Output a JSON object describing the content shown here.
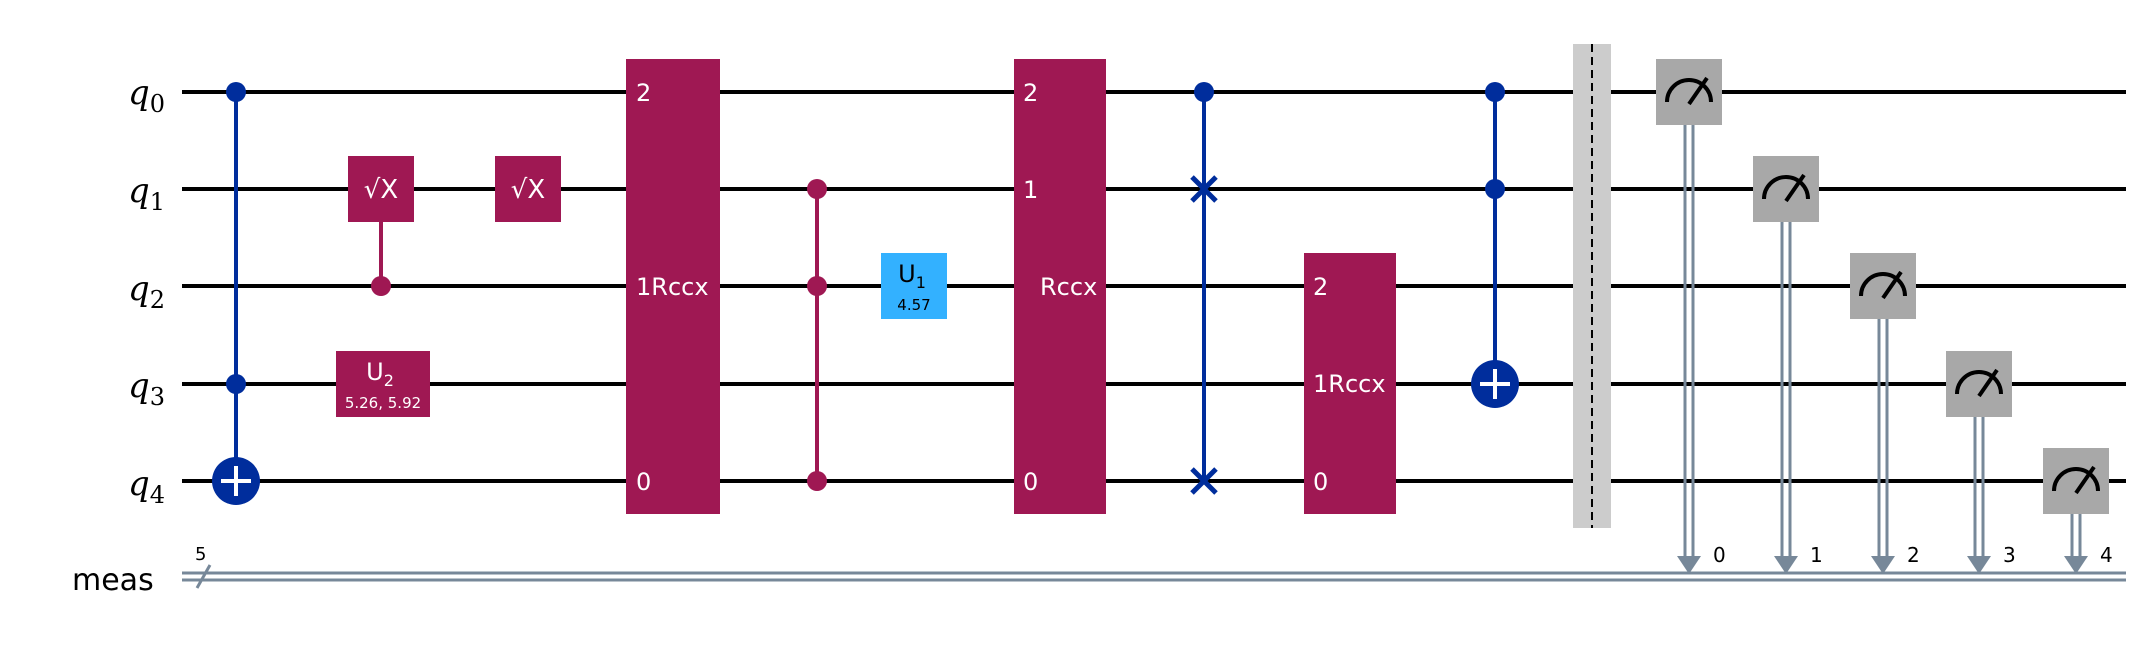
{
  "circuit": {
    "qubits": [
      {
        "base": "q",
        "sub": "0"
      },
      {
        "base": "q",
        "sub": "1"
      },
      {
        "base": "q",
        "sub": "2"
      },
      {
        "base": "q",
        "sub": "3"
      },
      {
        "base": "q",
        "sub": "4"
      }
    ],
    "classical": {
      "name": "meas",
      "width": "5"
    },
    "gates": {
      "sx_1": "√X",
      "sx_2": "√X",
      "u2_name": "U",
      "u2_sub": "2",
      "u2_params": "5.26, 5.92",
      "u1_name": "U",
      "u1_sub": "1",
      "u1_params": "4.57",
      "rccx1_top": "2",
      "rccx1_mid": "1Rccx",
      "rccx1_bot": "0",
      "rccx2_top": "2",
      "rccx2_q1": "1",
      "rccx2_mid": "Rccx",
      "rccx2_bot": "0",
      "rccx3_top": "2",
      "rccx3_mid": "1Rccx",
      "rccx3_bot": "0"
    },
    "measure_bits": [
      "0",
      "1",
      "2",
      "3",
      "4"
    ],
    "colors": {
      "controlled": "#002d9c",
      "magenta": "#9f1853",
      "u1": "#33b1ff",
      "measure": "#a8a8a8",
      "classical": "#778899",
      "barrier": "#cccccc"
    }
  }
}
